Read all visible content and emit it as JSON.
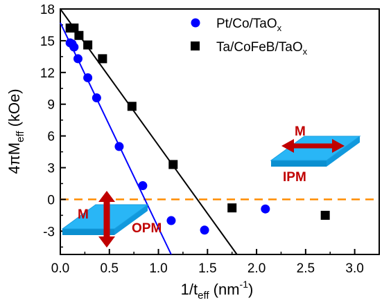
{
  "chart_data": {
    "type": "scatter",
    "xlabel": {
      "base": "1/t",
      "sub": "eff",
      "unit_open": " (nm",
      "sup": "-1",
      "unit_close": ")"
    },
    "ylabel": {
      "base": "4πM",
      "sub": "eff",
      "unit": " (kOe)"
    },
    "xlim": [
      0,
      3.25
    ],
    "ylim": [
      -5.2,
      18
    ],
    "x_ticks": [
      "0.0",
      "0.5",
      "1.0",
      "1.5",
      "2.0",
      "2.5",
      "3.0"
    ],
    "x_tick_values": [
      0,
      0.5,
      1.0,
      1.5,
      2.0,
      2.5,
      3.0
    ],
    "y_ticks": [
      "-3",
      "0",
      "3",
      "6",
      "9",
      "12",
      "15",
      "18"
    ],
    "y_tick_values": [
      -3,
      0,
      3,
      6,
      9,
      12,
      15,
      18
    ],
    "grid": false,
    "legend_position": "top-right",
    "series": [
      {
        "name": "Pt/Co/TaO",
        "name_sub": "x",
        "marker": "circle",
        "color": "#0000ff",
        "x": [
          0.1,
          0.12,
          0.14,
          0.18,
          0.28,
          0.37,
          0.6,
          0.84,
          1.13,
          1.47,
          2.09
        ],
        "y": [
          14.8,
          14.7,
          14.4,
          13.3,
          11.5,
          9.6,
          5.0,
          1.3,
          -2.0,
          -2.9,
          -0.9
        ],
        "fit": {
          "x": [
            0.0,
            1.13
          ],
          "y": [
            16.7,
            -5.2
          ]
        }
      },
      {
        "name": "Ta/CoFeB/TaO",
        "name_sub": "x",
        "marker": "square",
        "color": "#000000",
        "x": [
          0.1,
          0.14,
          0.19,
          0.28,
          0.43,
          0.73,
          1.15,
          1.75,
          2.7
        ],
        "y": [
          16.2,
          16.2,
          15.5,
          14.6,
          13.3,
          8.8,
          3.3,
          -0.8,
          -1.5
        ],
        "fit": {
          "x": [
            0.0,
            1.8
          ],
          "y": [
            18.0,
            -5.2
          ]
        }
      }
    ],
    "reference_line": {
      "y": 0,
      "color": "#ff8c00",
      "style": "dashed"
    },
    "annotations": {
      "ipm": {
        "arrow_label": "M",
        "state_label": "IPM"
      },
      "opm": {
        "arrow_label": "M",
        "state_label": "OPM"
      }
    }
  },
  "colors": {
    "plate": "#29b6f6",
    "plate_edge": "#0288d1",
    "arrow": "#c00000",
    "label": "#c00000"
  }
}
